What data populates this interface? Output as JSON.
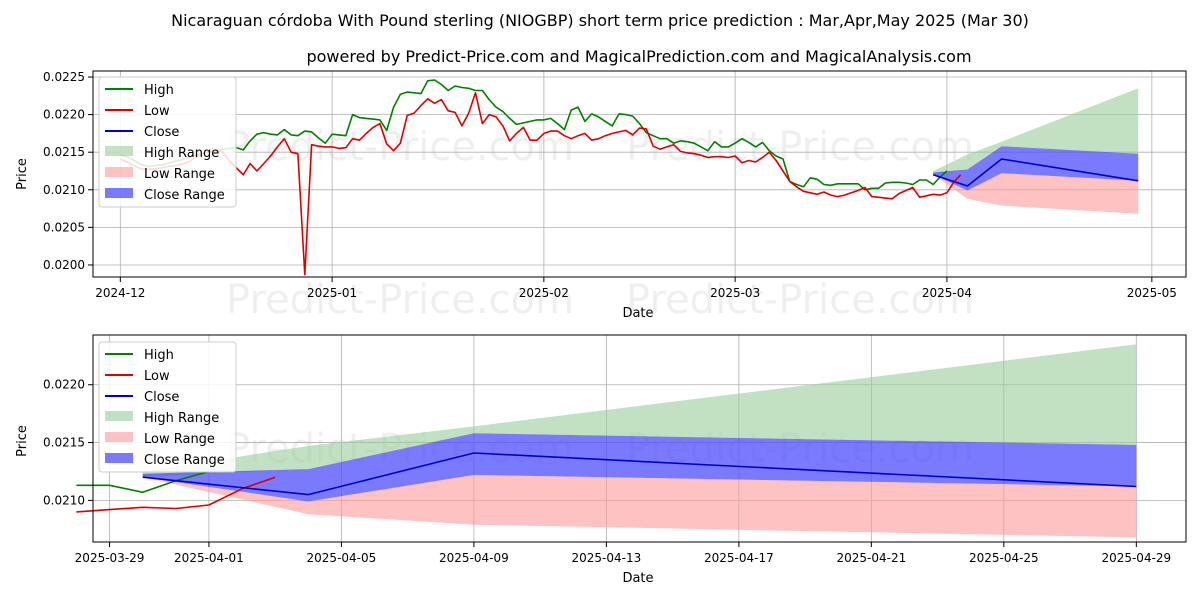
{
  "title": "Nicaraguan córdoba With Pound sterling (NIOGBP) short term price prediction : Mar,Apr,May 2025 (Mar 30)",
  "subtitle": "powered by Predict-Price.com and MagicalPrediction.com and MagicalAnalysis.com",
  "watermark": "Predict-Price.com",
  "colors": {
    "high": "#008000",
    "low": "#e00000",
    "close": "#0000cc",
    "high_range": "#99cc99",
    "low_range": "#ff9999",
    "close_range": "#4d4dff",
    "grid": "#b0b0b0"
  },
  "legend_labels": [
    "High",
    "Low",
    "Close",
    "High Range",
    "Low Range",
    "Close Range"
  ],
  "chart_data": [
    {
      "type": "line",
      "name": "history-and-forecast",
      "xlabel": "Date",
      "ylabel": "Price",
      "x_range": [
        "2024-11-27",
        "2025-05-06"
      ],
      "ylim": [
        0.01984,
        0.02258
      ],
      "yticks": [
        0.02,
        0.0205,
        0.021,
        0.0215,
        0.022,
        0.0225
      ],
      "ytick_labels": [
        "0.0200",
        "0.0205",
        "0.0210",
        "0.0215",
        "0.0220",
        "0.0225"
      ],
      "xticks": [
        "2024-12-01",
        "2025-01-01",
        "2025-02-01",
        "2025-03-01",
        "2025-04-01",
        "2025-05-01"
      ],
      "xtick_labels": [
        "2024-12",
        "2025-01",
        "2025-02",
        "2025-03",
        "2025-04",
        "2025-05"
      ],
      "legend_position": "upper-left",
      "history_start": "2024-12-01",
      "history_high": [
        0.02146,
        0.02144,
        0.02139,
        0.02134,
        0.02131,
        0.02132,
        0.02133,
        0.02135,
        0.02138,
        0.0214,
        0.02143,
        0.02146,
        0.02148,
        0.02151,
        0.02152,
        0.02154,
        0.02155,
        0.02156,
        0.02153,
        0.02165,
        0.02174,
        0.02176,
        0.02174,
        0.02173,
        0.0218,
        0.02173,
        0.02172,
        0.02178,
        0.02177,
        0.02169,
        0.02162,
        0.02174,
        0.02173,
        0.02172,
        0.022,
        0.02196,
        0.02195,
        0.02194,
        0.02193,
        0.02179,
        0.0221,
        0.02227,
        0.0223,
        0.02229,
        0.02228,
        0.02245,
        0.02246,
        0.0224,
        0.02232,
        0.02238,
        0.02236,
        0.02235,
        0.02232,
        0.02232,
        0.0222,
        0.0221,
        0.02204,
        0.02195,
        0.02187,
        0.02189,
        0.02191,
        0.02193,
        0.02193,
        0.02195,
        0.02188,
        0.0218,
        0.02206,
        0.0221,
        0.02191,
        0.02201,
        0.02197,
        0.02191,
        0.02185,
        0.02201,
        0.022,
        0.02198,
        0.02188,
        0.02176,
        0.02172,
        0.02168,
        0.02168,
        0.02162,
        0.02165,
        0.02164,
        0.02162,
        0.02157,
        0.02152,
        0.02164,
        0.02157,
        0.02157,
        0.02162,
        0.02168,
        0.02163,
        0.02157,
        0.02163,
        0.02152,
        0.02145,
        0.02141,
        0.02111,
        0.02107,
        0.02104,
        0.02116,
        0.02114,
        0.02107,
        0.02106,
        0.02108,
        0.02108,
        0.02108,
        0.02108,
        0.021,
        0.02102,
        0.02102,
        0.02109,
        0.0211,
        0.0211,
        0.02109,
        0.02107,
        0.02113,
        0.02113,
        0.02107,
        0.02117,
        0.02125
      ],
      "history_low": [
        0.02141,
        0.02137,
        0.02132,
        0.02128,
        0.02127,
        0.02128,
        0.02129,
        0.02131,
        0.02132,
        0.02134,
        0.02137,
        0.02143,
        0.02148,
        0.0215,
        0.02152,
        0.0215,
        0.02138,
        0.02129,
        0.0212,
        0.02135,
        0.02125,
        0.02135,
        0.02145,
        0.02157,
        0.02168,
        0.0215,
        0.02148,
        0.01987,
        0.0216,
        0.02158,
        0.02157,
        0.02157,
        0.02155,
        0.02156,
        0.02168,
        0.02166,
        0.02175,
        0.02183,
        0.02188,
        0.02161,
        0.02152,
        0.02162,
        0.02199,
        0.02202,
        0.02212,
        0.02221,
        0.02215,
        0.0222,
        0.02205,
        0.02203,
        0.02185,
        0.02202,
        0.02229,
        0.02188,
        0.022,
        0.02197,
        0.02185,
        0.02165,
        0.02175,
        0.02183,
        0.02166,
        0.02166,
        0.02175,
        0.02178,
        0.02178,
        0.02172,
        0.02168,
        0.02172,
        0.02175,
        0.02166,
        0.02168,
        0.02172,
        0.02175,
        0.02177,
        0.02179,
        0.02173,
        0.02182,
        0.02181,
        0.02158,
        0.02154,
        0.02157,
        0.0216,
        0.02151,
        0.02149,
        0.02148,
        0.02146,
        0.02143,
        0.02144,
        0.02144,
        0.02143,
        0.02145,
        0.02136,
        0.02139,
        0.02137,
        0.02143,
        0.0215,
        0.02139,
        0.02125,
        0.02111,
        0.02104,
        0.02098,
        0.02096,
        0.02094,
        0.02097,
        0.02093,
        0.02091,
        0.02093,
        0.02096,
        0.02099,
        0.02103,
        0.02091,
        0.0209,
        0.02089,
        0.02088,
        0.02095,
        0.02099,
        0.02103,
        0.0209,
        0.02092,
        0.02094,
        0.02093,
        0.02096,
        0.0211,
        0.0212
      ],
      "forecast": {
        "dates": [
          "2025-03-30",
          "2025-04-04",
          "2025-04-09",
          "2025-04-29"
        ],
        "close": [
          0.0212,
          0.02105,
          0.02141,
          0.02112
        ],
        "close_range_upper": [
          0.02123,
          0.02127,
          0.02158,
          0.02148
        ],
        "close_range_lower": [
          0.0212,
          0.02099,
          0.02122,
          0.02112
        ],
        "high_range_upper": [
          0.02125,
          0.02147,
          0.02164,
          0.02235
        ],
        "high_range_lower": [
          0.0212,
          0.02127,
          0.02158,
          0.02148
        ],
        "low_range_upper": [
          0.0212,
          0.02099,
          0.02122,
          0.02112
        ],
        "low_range_lower": [
          0.0212,
          0.02088,
          0.02079,
          0.02068
        ]
      }
    },
    {
      "type": "line",
      "name": "forecast-zoom",
      "xlabel": "Date",
      "ylabel": "Price",
      "x_range": [
        "2025-03-28 12:00",
        "2025-04-30 12:00"
      ],
      "ylim": [
        0.02064,
        0.02243
      ],
      "yticks": [
        0.021,
        0.0215,
        0.022
      ],
      "ytick_labels": [
        "0.0210",
        "0.0215",
        "0.0220"
      ],
      "xticks": [
        "2025-03-29",
        "2025-04-01",
        "2025-04-05",
        "2025-04-09",
        "2025-04-13",
        "2025-04-17",
        "2025-04-21",
        "2025-04-25",
        "2025-04-29"
      ],
      "xtick_labels": [
        "2025-03-29",
        "2025-04-01",
        "2025-04-05",
        "2025-04-09",
        "2025-04-13",
        "2025-04-17",
        "2025-04-21",
        "2025-04-25",
        "2025-04-29"
      ],
      "legend_position": "upper-left"
    }
  ]
}
